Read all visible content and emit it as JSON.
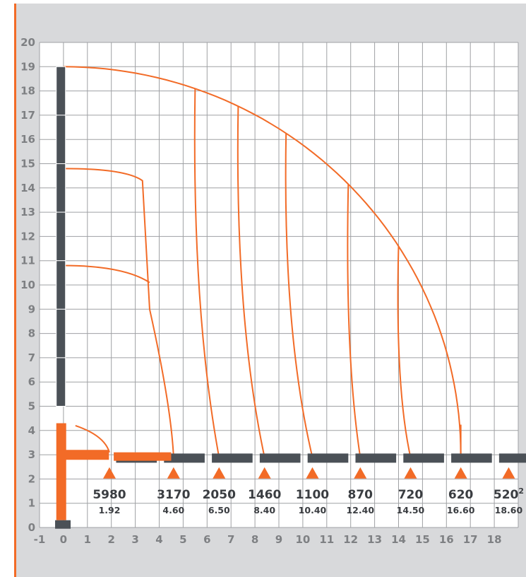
{
  "chart_data": {
    "type": "load-chart",
    "title": "",
    "xlabel": "",
    "ylabel": "",
    "xlim": [
      -1,
      19
    ],
    "ylim": [
      0,
      20
    ],
    "grid": true,
    "x_ticks": [
      "-1",
      "0",
      "1",
      "2",
      "3",
      "4",
      "5",
      "6",
      "7",
      "8",
      "9",
      "10",
      "11",
      "12",
      "13",
      "14",
      "15",
      "16",
      "17",
      "18"
    ],
    "y_ticks": [
      "0",
      "1",
      "2",
      "3",
      "4",
      "5",
      "6",
      "7",
      "8",
      "9",
      "10",
      "11",
      "12",
      "13",
      "14",
      "15",
      "16",
      "17",
      "18",
      "19",
      "20"
    ],
    "load_points": [
      {
        "load": "5980",
        "reach": "1.92",
        "x": 1.92
      },
      {
        "load": "3170",
        "reach": "4.60",
        "x": 4.6
      },
      {
        "load": "2050",
        "reach": "6.50",
        "x": 6.5
      },
      {
        "load": "1460",
        "reach": "8.40",
        "x": 8.4
      },
      {
        "load": "1100",
        "reach": "10.40",
        "x": 10.4
      },
      {
        "load": "870",
        "reach": "12.40",
        "x": 12.4
      },
      {
        "load": "720",
        "reach": "14.50",
        "x": 14.5
      },
      {
        "load": "620",
        "reach": "16.60",
        "x": 16.6
      },
      {
        "load": "520",
        "load_superscript": "2",
        "reach": "18.60",
        "x": 18.6
      }
    ],
    "envelope_max_height": 19,
    "boom_base_height": 3,
    "colors": {
      "envelope": "#f26b27",
      "grid": "#9fa1a4",
      "boom": "#4b5157",
      "crane_orange": "#f26b27",
      "marker": "#f26b27"
    }
  }
}
